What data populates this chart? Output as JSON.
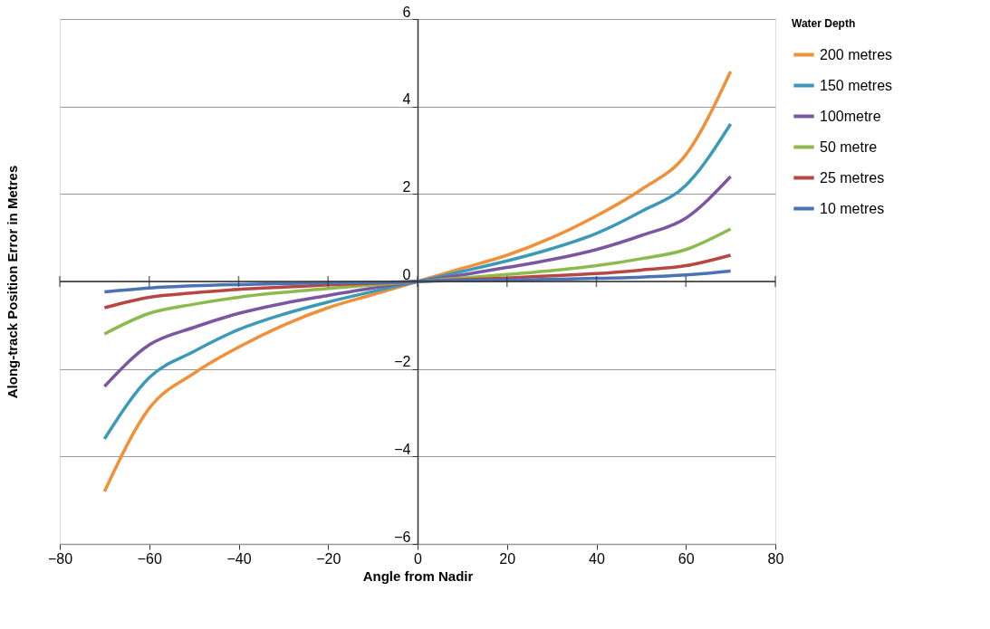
{
  "chart_data": {
    "type": "line",
    "xlabel": "Angle from Nadir",
    "ylabel": "Along-track Position Error in Metres",
    "legend_title": "Water Depth",
    "x": [
      -70,
      -60,
      -50,
      -40,
      -30,
      -20,
      -10,
      0,
      10,
      20,
      30,
      40,
      50,
      60,
      70
    ],
    "series": [
      {
        "name": "200 metres",
        "color": "#f0913a",
        "values": [
          -4.8,
          -2.9,
          -2.1,
          -1.5,
          -1.0,
          -0.6,
          -0.3,
          0,
          0.3,
          0.6,
          1.0,
          1.5,
          2.1,
          2.9,
          4.8
        ]
      },
      {
        "name": "150 metres",
        "color": "#3d9ab7",
        "values": [
          -3.6,
          -2.2,
          -1.6,
          -1.1,
          -0.75,
          -0.47,
          -0.23,
          0,
          0.23,
          0.47,
          0.75,
          1.1,
          1.6,
          2.2,
          3.6
        ]
      },
      {
        "name": "100metre",
        "color": "#7a57a0",
        "values": [
          -2.4,
          -1.45,
          -1.05,
          -0.73,
          -0.5,
          -0.32,
          -0.15,
          0,
          0.15,
          0.32,
          0.5,
          0.73,
          1.05,
          1.45,
          2.4
        ]
      },
      {
        "name": "50 metre",
        "color": "#8cba4e",
        "values": [
          -1.2,
          -0.73,
          -0.52,
          -0.36,
          -0.25,
          -0.16,
          -0.08,
          0,
          0.08,
          0.16,
          0.25,
          0.36,
          0.52,
          0.73,
          1.2
        ]
      },
      {
        "name": "25 metres",
        "color": "#b84744",
        "values": [
          -0.6,
          -0.36,
          -0.26,
          -0.18,
          -0.13,
          -0.08,
          -0.04,
          0,
          0.04,
          0.08,
          0.13,
          0.18,
          0.26,
          0.36,
          0.6
        ]
      },
      {
        "name": "10 metres",
        "color": "#4a73b4",
        "values": [
          -0.24,
          -0.15,
          -0.1,
          -0.07,
          -0.05,
          -0.03,
          -0.02,
          0,
          0.02,
          0.03,
          0.05,
          0.07,
          0.1,
          0.15,
          0.24
        ]
      }
    ],
    "xlim": [
      -80,
      80
    ],
    "xticks": [
      -80,
      -60,
      -40,
      -20,
      0,
      20,
      40,
      60,
      80
    ],
    "ylim": [
      -6,
      6
    ],
    "yticks": [
      -6,
      -4,
      -2,
      0,
      2,
      4,
      6
    ],
    "grid": "y",
    "legend": "right",
    "marker": "none",
    "line_style": "solid"
  }
}
